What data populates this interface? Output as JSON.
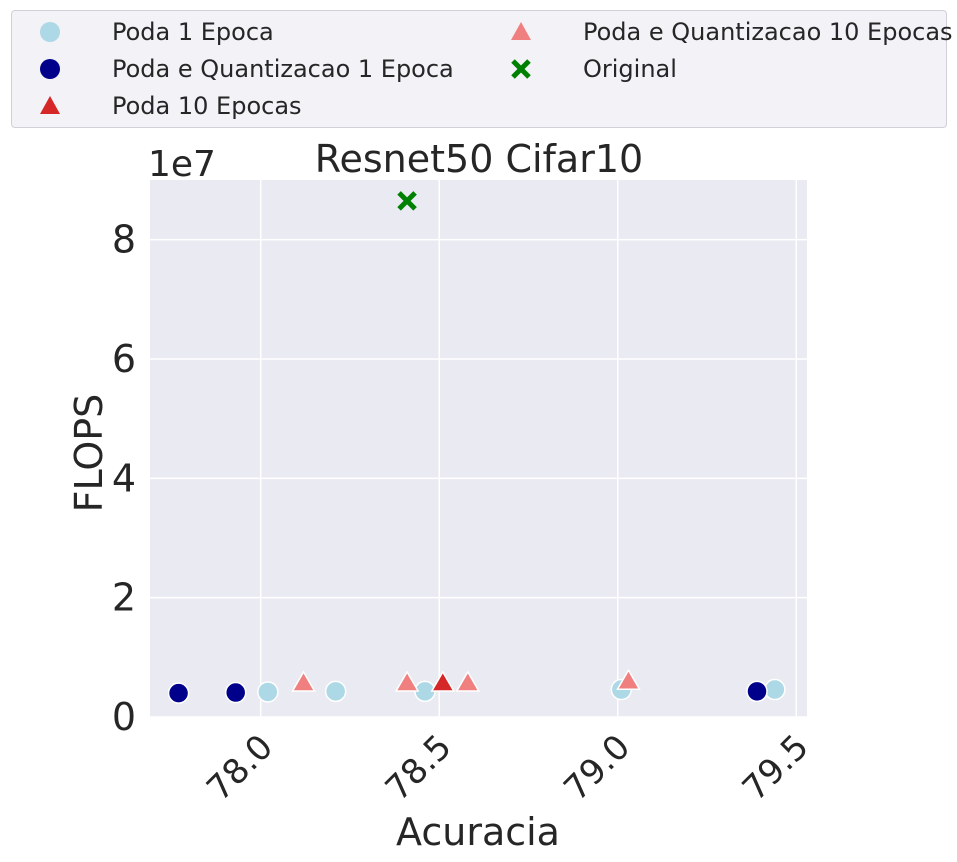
{
  "chart_data": {
    "type": "scatter",
    "title": "Resnet50 Cifar10",
    "xlabel": "Acuracia",
    "ylabel": "FLOPS",
    "y_offset_label": "1e7",
    "xlim": [
      77.69,
      79.53
    ],
    "ylim": [
      0,
      9.0
    ],
    "x_ticks": [
      78.0,
      78.5,
      79.0,
      79.5
    ],
    "x_tick_labels": [
      "78.0",
      "78.5",
      "79.0",
      "79.5"
    ],
    "y_ticks": [
      0,
      2,
      4,
      6,
      8
    ],
    "y_tick_labels": [
      "0",
      "2",
      "4",
      "6",
      "8"
    ],
    "grid": true,
    "legend_placement": "top",
    "series": [
      {
        "name": "Poda 1 Epoca",
        "marker": "circle",
        "color": "#add8e6",
        "points": [
          [
            78.02,
            0.42
          ],
          [
            78.21,
            0.43
          ],
          [
            78.46,
            0.43
          ],
          [
            79.01,
            0.46
          ],
          [
            79.44,
            0.46
          ]
        ]
      },
      {
        "name": "Poda e Quantizacao 1 Epoca",
        "marker": "circle",
        "color": "#00008b",
        "points": [
          [
            77.77,
            0.4
          ],
          [
            77.93,
            0.41
          ],
          [
            79.39,
            0.43
          ]
        ]
      },
      {
        "name": "Poda 10 Epocas",
        "marker": "triangle",
        "color": "#d62728",
        "points": [
          [
            78.51,
            0.57
          ]
        ]
      },
      {
        "name": "Poda e Quantizacao 10 Epocas",
        "marker": "triangle",
        "color": "#f08080",
        "points": [
          [
            78.12,
            0.57
          ],
          [
            78.41,
            0.57
          ],
          [
            78.58,
            0.57
          ],
          [
            79.03,
            0.6
          ]
        ]
      },
      {
        "name": "Original",
        "marker": "x",
        "color": "#008000",
        "points": [
          [
            78.41,
            8.65
          ]
        ]
      }
    ]
  }
}
